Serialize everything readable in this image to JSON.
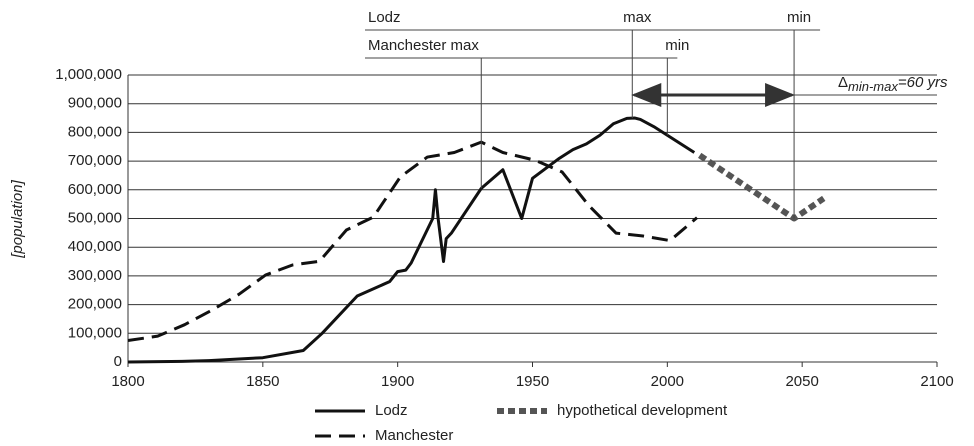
{
  "chart_data": {
    "type": "line",
    "ylabel": "[population]",
    "xlim": [
      1800,
      2100
    ],
    "xticks": [
      1800,
      1850,
      1900,
      1950,
      2000,
      2050,
      2100
    ],
    "ylim": [
      0,
      1000000
    ],
    "yticks": [
      0,
      {
        "value": 100000,
        "label": "100,000"
      },
      {
        "value": 200000,
        "label": "200,000"
      },
      {
        "value": 300000,
        "label": "300,000"
      },
      {
        "value": 400000,
        "label": "400,000"
      },
      {
        "value": 500000,
        "label": "500,000"
      },
      {
        "value": 600000,
        "label": "600,000"
      },
      {
        "value": 700000,
        "label": "700,000"
      },
      {
        "value": 800000,
        "label": "800,000"
      },
      {
        "value": 900000,
        "label": "900,000"
      },
      {
        "value": 1000000,
        "label": "1,000,000"
      }
    ],
    "grid": true,
    "legend": "bottom",
    "series": [
      {
        "name": "Lodz",
        "color": "#111111",
        "style": "solid",
        "x": [
          1800,
          1820,
          1830,
          1850,
          1865,
          1872,
          1885,
          1897,
          1900,
          1903,
          1905,
          1913,
          1914,
          1915,
          1917,
          1918,
          1920,
          1931,
          1939,
          1946,
          1950,
          1960,
          1965,
          1970,
          1975,
          1980,
          1985,
          1988,
          1990,
          1995,
          2000,
          2005,
          2010
        ],
        "values": [
          0,
          2000,
          5000,
          15000,
          40000,
          100000,
          230000,
          280000,
          315000,
          320000,
          345000,
          500000,
          600000,
          500000,
          350000,
          430000,
          450000,
          605000,
          670000,
          500000,
          640000,
          710000,
          740000,
          760000,
          790000,
          830000,
          849000,
          850000,
          845000,
          820000,
          790000,
          760000,
          730000
        ]
      },
      {
        "name": "Manchester",
        "color": "#111111",
        "style": "dashed",
        "x": [
          1800,
          1811,
          1821,
          1831,
          1841,
          1851,
          1861,
          1871,
          1881,
          1891,
          1901,
          1911,
          1921,
          1931,
          1939,
          1951,
          1961,
          1971,
          1981,
          1991,
          2001,
          2011
        ],
        "values": [
          75000,
          90000,
          130000,
          180000,
          235000,
          303000,
          338000,
          351000,
          460000,
          505000,
          645000,
          714000,
          730000,
          766000,
          730000,
          703000,
          662000,
          544000,
          449000,
          439000,
          423000,
          503000
        ]
      },
      {
        "name": "hypothetical development",
        "color": "#555555",
        "style": "dotted",
        "x": [
          2012,
          2047,
          2058
        ],
        "values": [
          720000,
          500000,
          570000
        ]
      }
    ],
    "lodz_markers": {
      "label": "Lodz",
      "max_label": "max",
      "max_x": 1987,
      "min_label": "min",
      "min_x": 2047
    },
    "manchester_markers": {
      "label": "Manchester max",
      "max_x": 1931,
      "min_label": "min",
      "min_x": 2000
    },
    "interval": {
      "symbol": "Δ",
      "subscript": "min-max",
      "text": "=60 yrs",
      "from": 1987,
      "to": 2047
    }
  }
}
